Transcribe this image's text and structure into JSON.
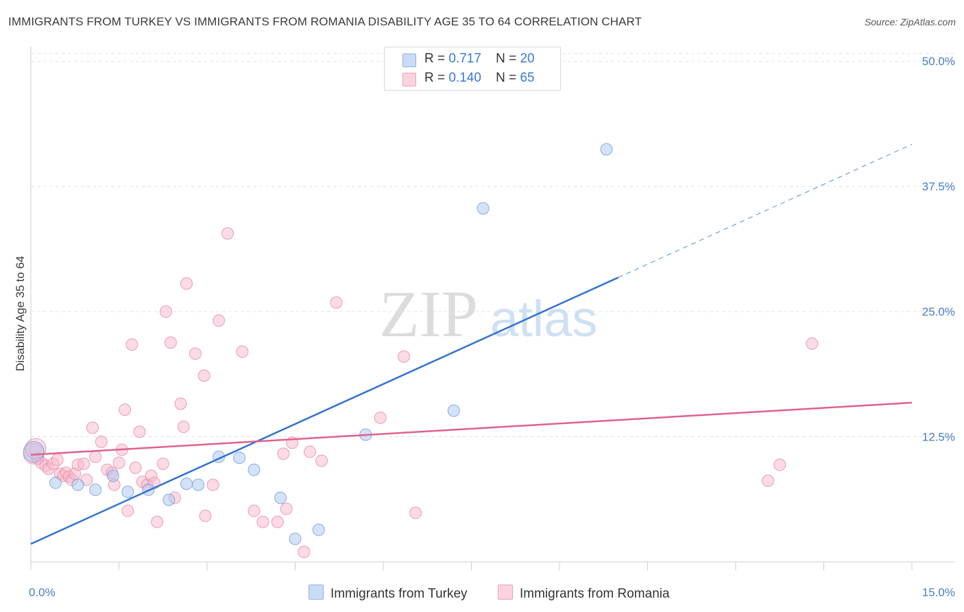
{
  "title": "IMMIGRANTS FROM TURKEY VS IMMIGRANTS FROM ROMANIA DISABILITY AGE 35 TO 64 CORRELATION CHART",
  "source": "Source: ZipAtlas.com",
  "watermark": {
    "zip": "ZIP",
    "atlas": "atlas"
  },
  "legend": {
    "rows": [
      {
        "r_label": "R =",
        "r_value": "0.717",
        "n_label": "N =",
        "n_value": "20",
        "color": "#a9c6f0"
      },
      {
        "r_label": "R =",
        "r_value": "0.140",
        "n_label": "N =",
        "n_value": "65",
        "color": "#f7b7c9"
      }
    ]
  },
  "bottom_legend": {
    "turkey": "Immigrants from Turkey",
    "romania": "Immigrants from Romania"
  },
  "chart_data": {
    "type": "scatter",
    "ylabel": "Disability Age 35 to 64",
    "xlim": [
      0,
      15
    ],
    "ylim": [
      0,
      52
    ],
    "x_tick_labels": [
      "0.0%",
      "15.0%"
    ],
    "y_ticks": [
      12.5,
      25.0,
      37.5,
      50.0
    ],
    "y_tick_labels": [
      "12.5%",
      "25.0%",
      "37.5%",
      "50.0%"
    ],
    "grid": true,
    "legend_position": "top-center",
    "series": [
      {
        "name": "Immigrants from Turkey",
        "color": "#a9c6f0",
        "edge": "#6f9bd9",
        "line_color": "#2f72d0",
        "trend": {
          "x0": 0.0,
          "y0": 1.8,
          "x1": 10.0,
          "y1": 28.4,
          "dash_x1": 15.0,
          "dash_y1": 41.7
        },
        "points": [
          [
            0.05,
            11.0
          ],
          [
            0.42,
            7.9
          ],
          [
            0.8,
            7.7
          ],
          [
            1.1,
            7.2
          ],
          [
            1.4,
            8.6
          ],
          [
            1.65,
            7.0
          ],
          [
            2.0,
            7.2
          ],
          [
            2.35,
            6.2
          ],
          [
            2.65,
            7.8
          ],
          [
            2.85,
            7.7
          ],
          [
            3.2,
            10.5
          ],
          [
            3.55,
            10.4
          ],
          [
            3.8,
            9.2
          ],
          [
            4.25,
            6.4
          ],
          [
            4.5,
            2.3
          ],
          [
            4.9,
            3.2
          ],
          [
            5.7,
            12.7
          ],
          [
            7.2,
            15.1
          ],
          [
            7.7,
            35.3
          ],
          [
            9.8,
            41.2
          ]
        ]
      },
      {
        "name": "Immigrants from Romania",
        "color": "#f7b7c9",
        "edge": "#e987a6",
        "line_color": "#e0618a",
        "trend": {
          "x0": 0.0,
          "y0": 10.7,
          "x1": 15.0,
          "y1": 15.9
        },
        "points": [
          [
            0.05,
            10.8
          ],
          [
            0.12,
            10.3
          ],
          [
            0.18,
            9.9
          ],
          [
            0.25,
            9.6
          ],
          [
            0.3,
            9.3
          ],
          [
            0.38,
            9.8
          ],
          [
            0.45,
            10.2
          ],
          [
            0.5,
            8.8
          ],
          [
            0.55,
            8.6
          ],
          [
            0.6,
            8.9
          ],
          [
            0.65,
            8.5
          ],
          [
            0.7,
            8.2
          ],
          [
            0.75,
            8.8
          ],
          [
            0.8,
            9.7
          ],
          [
            0.9,
            9.8
          ],
          [
            0.95,
            8.2
          ],
          [
            1.05,
            13.4
          ],
          [
            1.1,
            10.5
          ],
          [
            1.2,
            12.0
          ],
          [
            1.3,
            9.2
          ],
          [
            1.38,
            8.9
          ],
          [
            1.42,
            7.7
          ],
          [
            1.5,
            9.9
          ],
          [
            1.55,
            11.2
          ],
          [
            1.6,
            15.2
          ],
          [
            1.65,
            5.1
          ],
          [
            1.72,
            21.7
          ],
          [
            1.78,
            9.4
          ],
          [
            1.85,
            13.0
          ],
          [
            1.9,
            8.0
          ],
          [
            1.98,
            7.7
          ],
          [
            2.05,
            8.6
          ],
          [
            2.1,
            7.9
          ],
          [
            2.15,
            4.0
          ],
          [
            2.25,
            9.8
          ],
          [
            2.3,
            25.0
          ],
          [
            2.38,
            21.9
          ],
          [
            2.45,
            6.4
          ],
          [
            2.55,
            15.8
          ],
          [
            2.6,
            13.5
          ],
          [
            2.65,
            27.8
          ],
          [
            2.8,
            20.8
          ],
          [
            2.95,
            18.6
          ],
          [
            2.97,
            4.6
          ],
          [
            3.1,
            7.7
          ],
          [
            3.2,
            24.1
          ],
          [
            3.35,
            32.8
          ],
          [
            3.6,
            21.0
          ],
          [
            3.8,
            5.1
          ],
          [
            3.95,
            4.0
          ],
          [
            4.2,
            4.0
          ],
          [
            4.3,
            10.8
          ],
          [
            4.35,
            5.3
          ],
          [
            4.45,
            11.9
          ],
          [
            4.65,
            1.0
          ],
          [
            4.75,
            11.0
          ],
          [
            4.95,
            10.1
          ],
          [
            5.2,
            25.9
          ],
          [
            5.95,
            14.4
          ],
          [
            6.35,
            20.5
          ],
          [
            6.55,
            4.9
          ],
          [
            12.55,
            8.1
          ],
          [
            12.75,
            9.7
          ],
          [
            13.3,
            21.8
          ],
          [
            0.08,
            11.3
          ]
        ]
      }
    ]
  }
}
